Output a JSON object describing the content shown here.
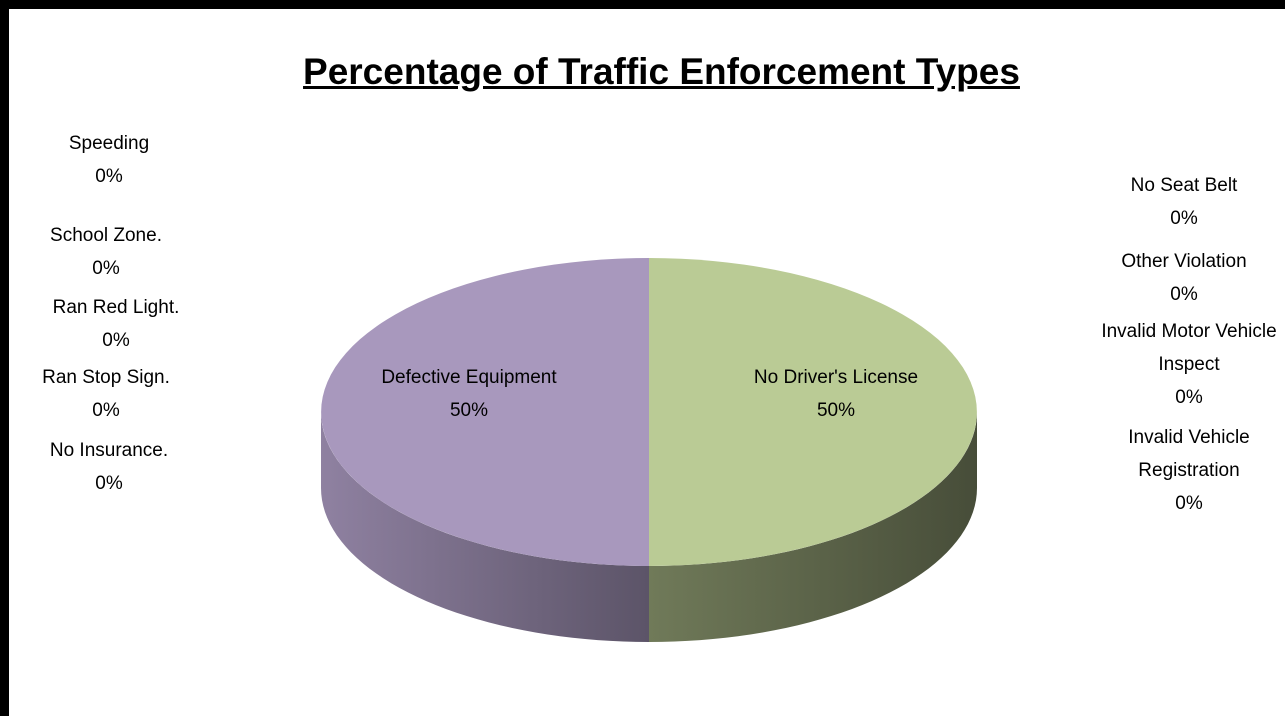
{
  "chart_data": {
    "type": "pie",
    "title": "Percentage of Traffic Enforcement Types",
    "categories": [
      "No Driver's License",
      "Invalid Vehicle Registration",
      "Invalid Motor Vehicle Inspect",
      "Other Violation",
      "No Seat Belt",
      "Defective Equipment",
      "No Insurance.",
      "Ran Stop Sign.",
      "Ran Red Light.",
      "School Zone.",
      "Speeding"
    ],
    "values": [
      50,
      0,
      0,
      0,
      0,
      50,
      0,
      0,
      0,
      0,
      0
    ],
    "value_labels": [
      "50%",
      "0%",
      "0%",
      "0%",
      "0%",
      "50%",
      "0%",
      "0%",
      "0%",
      "0%",
      "0%"
    ],
    "colors": [
      "#bacb95",
      "#8fa8cf",
      "#d39694",
      "#c3d69b",
      "#b3a2c7",
      "#a898bd",
      "#93cddd",
      "#fac090",
      "#8ea8d0",
      "#d99694",
      "#c4d79b"
    ]
  }
}
